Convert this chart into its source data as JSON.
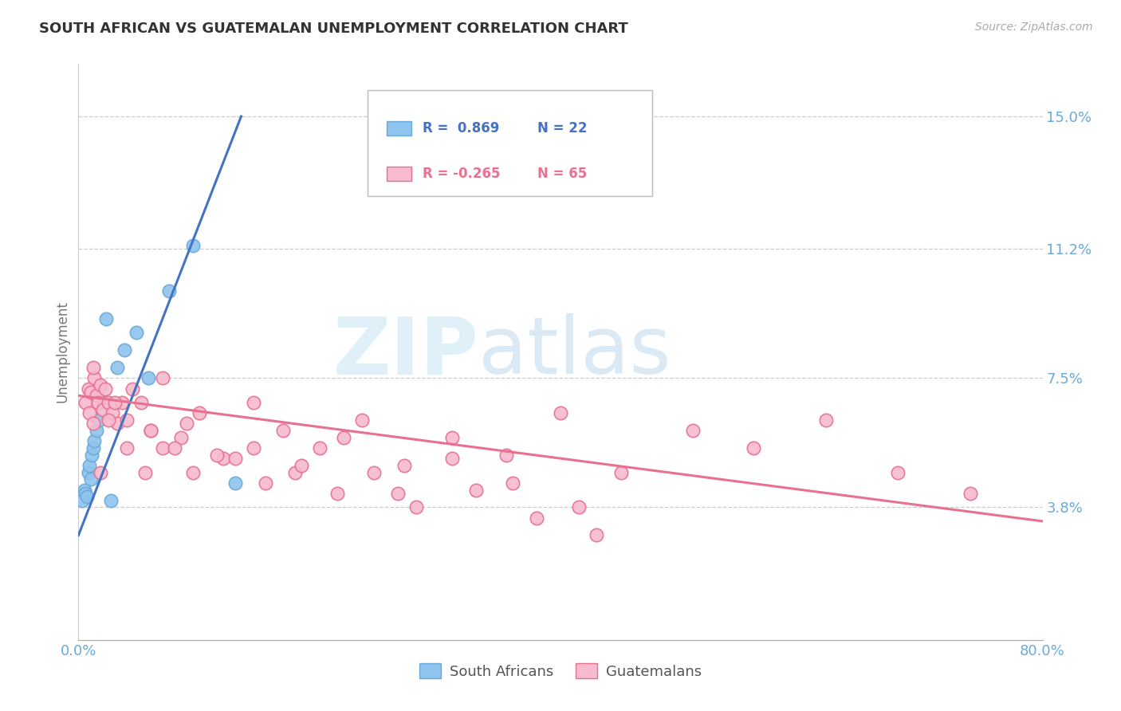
{
  "title": "SOUTH AFRICAN VS GUATEMALAN UNEMPLOYMENT CORRELATION CHART",
  "source": "Source: ZipAtlas.com",
  "ylabel": "Unemployment",
  "xlim": [
    0.0,
    0.8
  ],
  "ylim": [
    0.0,
    0.165
  ],
  "yticks": [
    0.038,
    0.075,
    0.112,
    0.15
  ],
  "ytick_labels": [
    "3.8%",
    "7.5%",
    "11.2%",
    "15.0%"
  ],
  "xticks": [
    0.0,
    0.2,
    0.4,
    0.6,
    0.8
  ],
  "xtick_labels": [
    "0.0%",
    "",
    "",
    "",
    "80.0%"
  ],
  "watermark_zip": "ZIP",
  "watermark_atlas": "atlas",
  "sa_color": "#8EC4EE",
  "sa_edge_color": "#6AAAD8",
  "gt_color": "#F7BACF",
  "gt_edge_color": "#E8708F",
  "sa_line_color": "#4472C4",
  "gt_line_color": "#E87090",
  "legend_r_sa": "R =  0.869",
  "legend_n_sa": "N = 22",
  "legend_r_gt": "R = -0.265",
  "legend_n_gt": "N = 65",
  "background_color": "#ffffff",
  "grid_color": "#cccccc",
  "tick_color": "#6AAAD8",
  "sa_points_x": [
    0.003,
    0.005,
    0.006,
    0.007,
    0.008,
    0.009,
    0.01,
    0.011,
    0.012,
    0.013,
    0.015,
    0.017,
    0.02,
    0.023,
    0.027,
    0.032,
    0.038,
    0.048,
    0.058,
    0.075,
    0.095,
    0.13
  ],
  "sa_points_y": [
    0.04,
    0.043,
    0.042,
    0.041,
    0.048,
    0.05,
    0.046,
    0.053,
    0.055,
    0.057,
    0.06,
    0.063,
    0.068,
    0.092,
    0.04,
    0.078,
    0.083,
    0.088,
    0.075,
    0.1,
    0.113,
    0.045
  ],
  "gt_points_x": [
    0.006,
    0.008,
    0.009,
    0.01,
    0.012,
    0.013,
    0.015,
    0.016,
    0.018,
    0.02,
    0.022,
    0.025,
    0.028,
    0.032,
    0.036,
    0.04,
    0.045,
    0.052,
    0.06,
    0.07,
    0.085,
    0.1,
    0.12,
    0.145,
    0.17,
    0.2,
    0.235,
    0.27,
    0.31,
    0.355,
    0.4,
    0.45,
    0.51,
    0.56,
    0.62,
    0.68,
    0.74,
    0.012,
    0.018,
    0.025,
    0.03,
    0.04,
    0.055,
    0.07,
    0.09,
    0.115,
    0.145,
    0.18,
    0.22,
    0.265,
    0.31,
    0.36,
    0.415,
    0.06,
    0.08,
    0.095,
    0.13,
    0.155,
    0.185,
    0.215,
    0.245,
    0.28,
    0.33,
    0.38,
    0.43
  ],
  "gt_points_y": [
    0.068,
    0.072,
    0.065,
    0.071,
    0.062,
    0.075,
    0.07,
    0.068,
    0.073,
    0.066,
    0.072,
    0.068,
    0.065,
    0.062,
    0.068,
    0.063,
    0.072,
    0.068,
    0.06,
    0.075,
    0.058,
    0.065,
    0.052,
    0.068,
    0.06,
    0.055,
    0.063,
    0.05,
    0.058,
    0.053,
    0.065,
    0.048,
    0.06,
    0.055,
    0.063,
    0.048,
    0.042,
    0.078,
    0.048,
    0.063,
    0.068,
    0.055,
    0.048,
    0.055,
    0.062,
    0.053,
    0.055,
    0.048,
    0.058,
    0.042,
    0.052,
    0.045,
    0.038,
    0.06,
    0.055,
    0.048,
    0.052,
    0.045,
    0.05,
    0.042,
    0.048,
    0.038,
    0.043,
    0.035,
    0.03
  ],
  "sa_trend_x": [
    0.0,
    0.135
  ],
  "sa_trend_y": [
    0.03,
    0.15
  ],
  "gt_trend_x": [
    0.0,
    0.8
  ],
  "gt_trend_y": [
    0.07,
    0.034
  ]
}
